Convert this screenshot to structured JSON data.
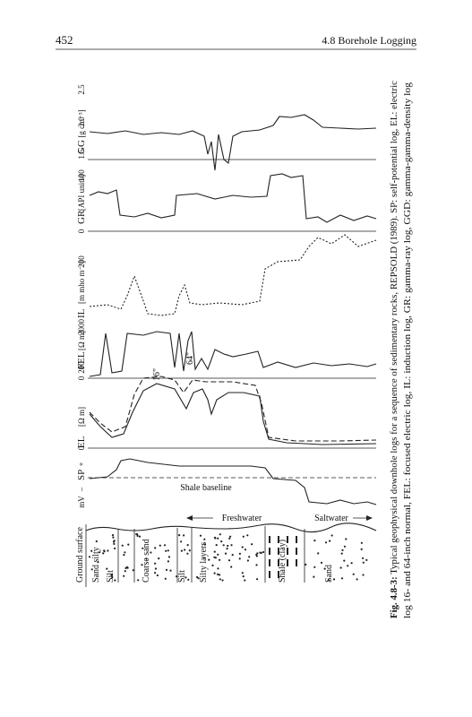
{
  "header": {
    "page_number": "452",
    "section": "4.8 Borehole Logging"
  },
  "figure": {
    "tracks": [
      {
        "name": "GG",
        "unit": "[g cm⁻³]",
        "ticks": [
          "2.5",
          "2.0",
          "1.5"
        ]
      },
      {
        "name": "GR",
        "unit": "[API units]",
        "ticks": [
          "100",
          "0"
        ]
      },
      {
        "name": "IL",
        "unit": "[m mho m⁻¹]",
        "ticks": [
          "200"
        ]
      },
      {
        "name": "FEL",
        "unit": "[Ω m]",
        "ticks": [
          "2000",
          "0"
        ]
      },
      {
        "name": "EL",
        "unit": "[Ω m]",
        "ticks": [
          "200",
          "0"
        ]
      },
      {
        "name": "SP",
        "unit": "mV",
        "ticks": [
          "+",
          "–"
        ]
      }
    ],
    "annotations": {
      "el_16": "16\"",
      "el_64": "64\"",
      "shale_baseline": "Shale baseline",
      "freshwater": "Freshwater",
      "saltwater": "Saltwater"
    },
    "lithology": [
      "Ground surface",
      "Sand silty",
      "Silt",
      "Coarse sand",
      "Silt",
      "Silty layers",
      "Shale (clay)",
      "Sand"
    ]
  },
  "caption": {
    "label": "Fig. 4.8-3:",
    "line1": "Typical geophysical downhole logs for a sequence of sedimentary rocks, REPSOLD (1989). SP: self-potential log, EL: electric",
    "line2": "log 16- and 64-inch normal, FEL: focused electric log, IL: induction log, GR: gamma-ray log, GGD: gamma-gamma-density log"
  }
}
